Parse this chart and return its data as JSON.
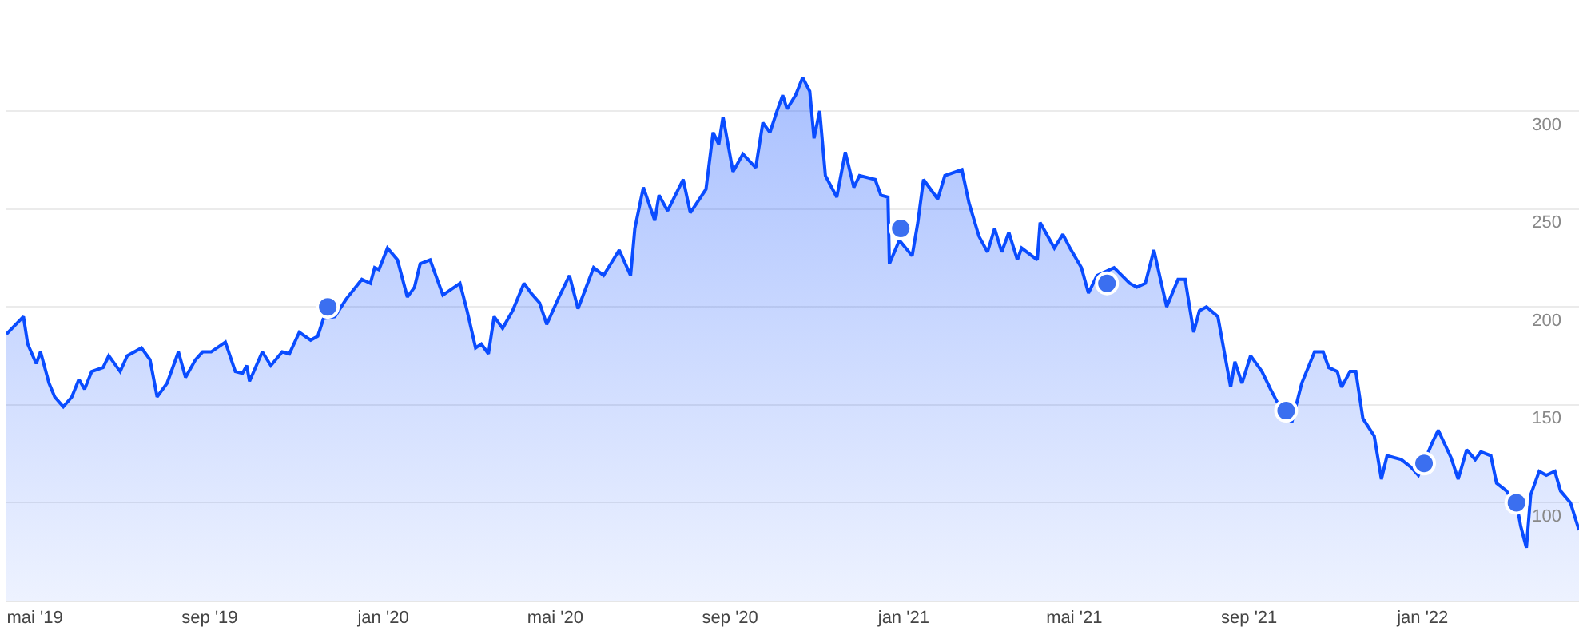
{
  "chart_data": {
    "type": "area",
    "grid": "y",
    "xlim": [
      "2019-04-11",
      "2022-04-21"
    ],
    "xticks": [
      {
        "value": "2019-05-01",
        "label": "mai '19"
      },
      {
        "value": "2019-09-01",
        "label": "sep '19"
      },
      {
        "value": "2020-01-01",
        "label": "jan '20"
      },
      {
        "value": "2020-05-01",
        "label": "mai '20"
      },
      {
        "value": "2020-09-01",
        "label": "sep '20"
      },
      {
        "value": "2021-01-01",
        "label": "jan '21"
      },
      {
        "value": "2021-05-01",
        "label": "mai '21"
      },
      {
        "value": "2021-09-01",
        "label": "sep '21"
      },
      {
        "value": "2022-01-01",
        "label": "jan '22"
      }
    ],
    "ylim": [
      50,
      355
    ],
    "yticks": [
      100,
      150,
      200,
      250,
      300
    ],
    "series": [
      {
        "color": "#0a4cff",
        "marker": "none",
        "line_style": "solid",
        "x": [
          "2019-04-11",
          "2019-04-23",
          "2019-04-26",
          "2019-05-02",
          "2019-05-05",
          "2019-05-11",
          "2019-05-15",
          "2019-05-21",
          "2019-05-27",
          "2019-06-01",
          "2019-06-05",
          "2019-06-10",
          "2019-06-18",
          "2019-06-22",
          "2019-06-30",
          "2019-07-05",
          "2019-07-15",
          "2019-07-21",
          "2019-07-26",
          "2019-08-02",
          "2019-08-10",
          "2019-08-15",
          "2019-08-22",
          "2019-08-27",
          "2019-09-02",
          "2019-09-12",
          "2019-09-19",
          "2019-09-24",
          "2019-09-27",
          "2019-09-29",
          "2019-10-08",
          "2019-10-14",
          "2019-10-22",
          "2019-10-27",
          "2019-11-03",
          "2019-11-11",
          "2019-11-16",
          "2019-11-20",
          "2019-11-28",
          "2019-12-06",
          "2019-12-17",
          "2019-12-23",
          "2019-12-26",
          "2019-12-29",
          "2020-01-04",
          "2020-01-11",
          "2020-01-18",
          "2020-01-23",
          "2020-01-27",
          "2020-02-03",
          "2020-02-12",
          "2020-02-24",
          "2020-02-29",
          "2020-03-06",
          "2020-03-10",
          "2020-03-15",
          "2020-03-19",
          "2020-03-25",
          "2020-04-01",
          "2020-04-09",
          "2020-04-14",
          "2020-04-20",
          "2020-04-25",
          "2020-05-03",
          "2020-05-11",
          "2020-05-17",
          "2020-05-28",
          "2020-06-04",
          "2020-06-15",
          "2020-06-23",
          "2020-06-26",
          "2020-07-02",
          "2020-07-10",
          "2020-07-13",
          "2020-07-19",
          "2020-07-30",
          "2020-08-04",
          "2020-08-15",
          "2020-08-20",
          "2020-08-24",
          "2020-08-27",
          "2020-09-03",
          "2020-09-10",
          "2020-09-19",
          "2020-09-24",
          "2020-09-29",
          "2020-10-04",
          "2020-10-08",
          "2020-10-11",
          "2020-10-17",
          "2020-10-22",
          "2020-10-27",
          "2020-10-30",
          "2020-11-03",
          "2020-11-07",
          "2020-11-15",
          "2020-11-21",
          "2020-11-27",
          "2020-12-01",
          "2020-12-12",
          "2020-12-16",
          "2020-12-21",
          "2020-12-22",
          "2020-12-29",
          "2021-01-07",
          "2021-01-11",
          "2021-01-15",
          "2021-01-25",
          "2021-01-30",
          "2021-02-11",
          "2021-02-16",
          "2021-02-23",
          "2021-03-01",
          "2021-03-06",
          "2021-03-11",
          "2021-03-16",
          "2021-03-22",
          "2021-03-25",
          "2021-04-05",
          "2021-04-07",
          "2021-04-17",
          "2021-04-23",
          "2021-04-28",
          "2021-05-06",
          "2021-05-11",
          "2021-05-17",
          "2021-05-29",
          "2021-06-09",
          "2021-06-14",
          "2021-06-20",
          "2021-06-26",
          "2021-07-05",
          "2021-07-13",
          "2021-07-18",
          "2021-07-24",
          "2021-07-28",
          "2021-08-02",
          "2021-08-10",
          "2021-08-15",
          "2021-08-19",
          "2021-08-22",
          "2021-08-27",
          "2021-09-02",
          "2021-09-10",
          "2021-09-16",
          "2021-09-21",
          "2021-10-01",
          "2021-10-08",
          "2021-10-17",
          "2021-10-23",
          "2021-10-27",
          "2021-11-02",
          "2021-11-05",
          "2021-11-11",
          "2021-11-15",
          "2021-11-20",
          "2021-11-28",
          "2021-12-03",
          "2021-12-07",
          "2021-12-17",
          "2021-12-24",
          "2021-12-29",
          "2022-01-08",
          "2022-01-12",
          "2022-01-21",
          "2022-01-26",
          "2022-02-01",
          "2022-02-07",
          "2022-02-11",
          "2022-02-18",
          "2022-02-22",
          "2022-03-01",
          "2022-03-09",
          "2022-03-11",
          "2022-03-15",
          "2022-03-18",
          "2022-03-24",
          "2022-03-29",
          "2022-04-04",
          "2022-04-08",
          "2022-04-15",
          "2022-04-21"
        ],
        "values": [
          186,
          195,
          181,
          171,
          177,
          161,
          154,
          149,
          154,
          163,
          158,
          167,
          169,
          175,
          167,
          175,
          179,
          173,
          154,
          161,
          177,
          164,
          173,
          177,
          177,
          182,
          167,
          166,
          170,
          162,
          177,
          170,
          177,
          176,
          187,
          183,
          185,
          194,
          195,
          204,
          214,
          212,
          220,
          219,
          230,
          224,
          205,
          210,
          222,
          224,
          206,
          212,
          198,
          179,
          181,
          176,
          195,
          189,
          198,
          212,
          207,
          202,
          191,
          204,
          216,
          199,
          220,
          216,
          229,
          216,
          240,
          261,
          244,
          257,
          249,
          265,
          248,
          260,
          289,
          283,
          297,
          269,
          278,
          271,
          294,
          289,
          300,
          308,
          301,
          308,
          317,
          310,
          286,
          300,
          267,
          256,
          279,
          261,
          267,
          265,
          257,
          256,
          222,
          234,
          226,
          243,
          265,
          255,
          267,
          270,
          253,
          236,
          228,
          240,
          228,
          238,
          224,
          230,
          224,
          243,
          230,
          237,
          230,
          220,
          207,
          216,
          220,
          212,
          210,
          212,
          229,
          200,
          214,
          214,
          187,
          198,
          200,
          195,
          175,
          159,
          172,
          161,
          175,
          167,
          158,
          151,
          141,
          161,
          177,
          177,
          169,
          167,
          159,
          167,
          167,
          143,
          134,
          112,
          124,
          122,
          118,
          114,
          131,
          137,
          123,
          112,
          127,
          122,
          126,
          124,
          110,
          106,
          96,
          88,
          77,
          104,
          116,
          114,
          116,
          106,
          100,
          86
        ]
      },
      {
        "type": "scatter",
        "color": "#3b6ff0",
        "marker": "circle",
        "x": [
          "2019-11-23",
          "2020-12-30",
          "2021-05-24",
          "2021-09-27",
          "2022-01-02",
          "2022-03-08"
        ],
        "values": [
          200,
          240,
          212,
          147,
          120,
          100
        ]
      }
    ]
  }
}
